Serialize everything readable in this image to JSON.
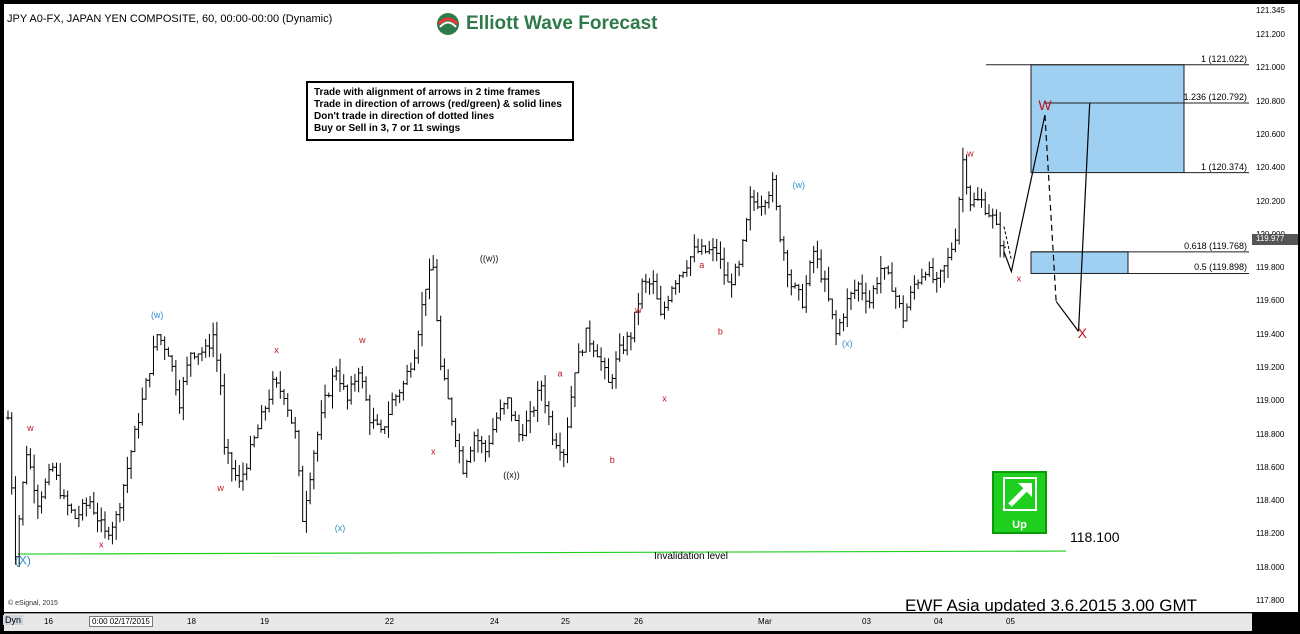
{
  "header": {
    "symbol_line": "JPY A0-FX, JAPAN YEN COMPOSITE, 60, 00:00-00:00 (Dynamic)"
  },
  "brand": {
    "name": "Elliott Wave Forecast"
  },
  "rules_box": {
    "lines": [
      "Trade with alignment of arrows in 2 time frames",
      "Trade in direction of arrows (red/green) & solid lines",
      "Don't trade in direction of dotted lines",
      "Buy or Sell in 3, 7 or 11 swings"
    ]
  },
  "footer": {
    "text": "EWF Asia  updated  3.6.2015  3.00 GMT",
    "copyright": "© eSignal, 2015"
  },
  "badge": {
    "label": "Up",
    "arrow": "up-right-arrow-icon",
    "color": "#1ecf1e"
  },
  "invalidation": {
    "value_label": "118.100",
    "label": "Invalidation level",
    "value": 118.1,
    "color": "#1ecf1e"
  },
  "colors": {
    "red_label": "#c0141e",
    "blue_label": "#2a8ec9",
    "black_label": "#111111",
    "box_fill": "#9fd0f2",
    "box_stroke": "#1a1a1a"
  },
  "chart_data": {
    "type": "ohlc",
    "title": "JPY A0-FX, JAPAN YEN COMPOSITE, 60, 00:00-00:00 (Dynamic)",
    "ylim": [
      117.8,
      121.345
    ],
    "y_ticks": [
      "121.200",
      "121.000",
      "120.800",
      "120.600",
      "120.400",
      "120.200",
      "120.000",
      "119.800",
      "119.600",
      "119.400",
      "119.200",
      "119.000",
      "118.800",
      "118.600",
      "118.400",
      "118.200",
      "118.000",
      "117.800"
    ],
    "y_top_label": "121.345",
    "current_price_label": "119.977",
    "current_price": 119.977,
    "x_ticks": [
      {
        "label": "Dyn",
        "box": true,
        "dyn": true
      },
      {
        "label": "16",
        "box": false
      },
      {
        "label": "0:00 02/17/2015",
        "box": true
      },
      {
        "label": "18",
        "box": false
      },
      {
        "label": "19",
        "box": false
      },
      {
        "label": "22",
        "box": false
      },
      {
        "label": "24",
        "box": false
      },
      {
        "label": "25",
        "box": false
      },
      {
        "label": "26",
        "box": false
      },
      {
        "label": "Mar",
        "box": false
      },
      {
        "label": "03",
        "box": false
      },
      {
        "label": "04",
        "box": false
      },
      {
        "label": "05",
        "box": false
      }
    ],
    "price_path": [
      [
        0,
        118.9
      ],
      [
        2,
        118.1
      ],
      [
        5,
        118.7
      ],
      [
        8,
        118.4
      ],
      [
        12,
        118.6
      ],
      [
        15,
        118.4
      ],
      [
        18,
        118.3
      ],
      [
        22,
        118.4
      ],
      [
        26,
        118.2
      ],
      [
        29,
        118.3
      ],
      [
        33,
        118.7
      ],
      [
        37,
        119.1
      ],
      [
        40,
        119.4
      ],
      [
        43,
        119.3
      ],
      [
        46,
        119.0
      ],
      [
        49,
        119.3
      ],
      [
        53,
        119.3
      ],
      [
        55,
        119.4
      ],
      [
        57,
        119.1
      ],
      [
        58,
        118.7
      ],
      [
        62,
        118.5
      ],
      [
        65,
        118.7
      ],
      [
        68,
        118.9
      ],
      [
        71,
        119.1
      ],
      [
        74,
        119.05
      ],
      [
        77,
        118.8
      ],
      [
        79,
        118.3
      ],
      [
        82,
        118.7
      ],
      [
        85,
        119.0
      ],
      [
        88,
        119.2
      ],
      [
        91,
        119.0
      ],
      [
        94,
        119.2
      ],
      [
        97,
        118.9
      ],
      [
        100,
        118.8
      ],
      [
        103,
        119.0
      ],
      [
        106,
        119.1
      ],
      [
        109,
        119.3
      ],
      [
        112,
        119.7
      ],
      [
        114,
        119.8
      ],
      [
        116,
        119.2
      ],
      [
        119,
        118.9
      ],
      [
        122,
        118.6
      ],
      [
        125,
        118.8
      ],
      [
        128,
        118.7
      ],
      [
        131,
        118.9
      ],
      [
        134,
        119.0
      ],
      [
        137,
        118.8
      ],
      [
        140,
        118.9
      ],
      [
        143,
        119.1
      ],
      [
        146,
        118.8
      ],
      [
        149,
        118.7
      ],
      [
        152,
        119.2
      ],
      [
        155,
        119.4
      ],
      [
        158,
        119.3
      ],
      [
        161,
        119.1
      ],
      [
        164,
        119.3
      ],
      [
        167,
        119.4
      ],
      [
        170,
        119.7
      ],
      [
        173,
        119.7
      ],
      [
        175,
        119.5
      ],
      [
        178,
        119.7
      ],
      [
        181,
        119.8
      ],
      [
        184,
        119.9
      ],
      [
        187,
        119.9
      ],
      [
        190,
        119.9
      ],
      [
        193,
        119.7
      ],
      [
        196,
        119.8
      ],
      [
        199,
        120.2
      ],
      [
        202,
        120.2
      ],
      [
        205,
        120.3
      ],
      [
        207,
        120.0
      ],
      [
        210,
        119.7
      ],
      [
        213,
        119.6
      ],
      [
        216,
        119.9
      ],
      [
        219,
        119.7
      ],
      [
        222,
        119.4
      ],
      [
        225,
        119.6
      ],
      [
        228,
        119.7
      ],
      [
        231,
        119.6
      ],
      [
        234,
        119.8
      ],
      [
        237,
        119.7
      ],
      [
        240,
        119.5
      ],
      [
        243,
        119.7
      ],
      [
        246,
        119.8
      ],
      [
        249,
        119.7
      ],
      [
        252,
        119.85
      ],
      [
        254,
        120.0
      ],
      [
        256,
        120.45
      ],
      [
        258,
        120.2
      ],
      [
        261,
        120.2
      ],
      [
        264,
        120.1
      ],
      [
        267,
        119.9
      ]
    ],
    "projection_solid": [
      [
        267,
        119.9
      ],
      [
        269,
        119.78
      ],
      [
        278,
        120.72
      ]
    ],
    "projection_dashed": [
      [
        278,
        120.72
      ],
      [
        281,
        119.6
      ],
      [
        287,
        119.42
      ],
      [
        290,
        120.79
      ]
    ],
    "fib_box_upper": {
      "from": 120.374,
      "to": 121.022,
      "label_top": "1 (121.022)",
      "label_bottom": "1 (120.374)"
    },
    "fib_box_lower": {
      "from": 119.768,
      "to": 119.898,
      "label_top": "0.5 (119.898)",
      "label_bottom": "0.618 (119.768)"
    },
    "fib_line_mid": {
      "value": 120.792,
      "label": "1.236 (120.792)"
    },
    "wave_labels": [
      {
        "text": "w",
        "x": 6,
        "y": 118.82,
        "color": "red",
        "size": 9
      },
      {
        "text": "x",
        "x": 25,
        "y": 118.12,
        "color": "red",
        "size": 9
      },
      {
        "text": "(X)",
        "x": 4,
        "y": 118.02,
        "color": "blue",
        "size": 12
      },
      {
        "text": "(w)",
        "x": 40,
        "y": 119.5,
        "color": "blue",
        "size": 9
      },
      {
        "text": "w",
        "x": 57,
        "y": 118.46,
        "color": "red",
        "size": 9
      },
      {
        "text": "x",
        "x": 72,
        "y": 119.29,
        "color": "red",
        "size": 9
      },
      {
        "text": "w",
        "x": 95,
        "y": 119.35,
        "color": "red",
        "size": 9
      },
      {
        "text": "(x)",
        "x": 89,
        "y": 118.22,
        "color": "blue",
        "size": 9
      },
      {
        "text": "x",
        "x": 114,
        "y": 118.68,
        "color": "red",
        "size": 9
      },
      {
        "text": "((w))",
        "x": 129,
        "y": 119.84,
        "color": "black",
        "size": 9
      },
      {
        "text": "((x))",
        "x": 135,
        "y": 118.54,
        "color": "black",
        "size": 9
      },
      {
        "text": "a",
        "x": 148,
        "y": 119.15,
        "color": "red",
        "size": 9
      },
      {
        "text": "b",
        "x": 162,
        "y": 118.63,
        "color": "red",
        "size": 9
      },
      {
        "text": "w",
        "x": 169,
        "y": 119.53,
        "color": "red",
        "size": 9
      },
      {
        "text": "x",
        "x": 176,
        "y": 119.0,
        "color": "red",
        "size": 9
      },
      {
        "text": "a",
        "x": 186,
        "y": 119.8,
        "color": "red",
        "size": 9
      },
      {
        "text": "b",
        "x": 191,
        "y": 119.4,
        "color": "red",
        "size": 9
      },
      {
        "text": "(w)",
        "x": 212,
        "y": 120.28,
        "color": "blue",
        "size": 9
      },
      {
        "text": "(x)",
        "x": 225,
        "y": 119.33,
        "color": "blue",
        "size": 9
      },
      {
        "text": "w",
        "x": 258,
        "y": 120.47,
        "color": "red",
        "size": 9
      },
      {
        "text": "x",
        "x": 271,
        "y": 119.72,
        "color": "red",
        "size": 9
      },
      {
        "text": "W",
        "x": 278,
        "y": 120.75,
        "color": "red",
        "size": 14
      },
      {
        "text": "X",
        "x": 288,
        "y": 119.38,
        "color": "red",
        "size": 14
      }
    ]
  }
}
